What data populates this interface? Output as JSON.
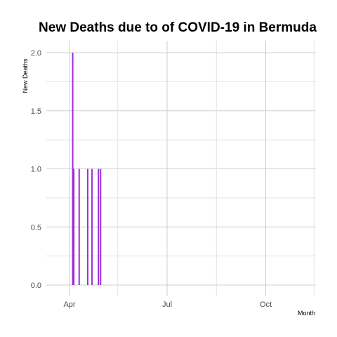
{
  "chart_data": {
    "type": "bar",
    "title": "New Deaths due to of COVID-19 in Bermuda",
    "xlabel": "Month",
    "ylabel": "New Deaths",
    "x_tick_labels": [
      "Apr",
      "Jul",
      "Oct"
    ],
    "y_tick_labels": [
      "0.0",
      "0.5",
      "1.0",
      "1.5",
      "2.0"
    ],
    "ylim": [
      0,
      2
    ],
    "grid": true,
    "bar_color": "#9b30d9",
    "series": [
      {
        "x": [
          "2020-04-04",
          "2020-04-05",
          "2020-04-10",
          "2020-04-18",
          "2020-04-22",
          "2020-04-28",
          "2020-04-30"
        ],
        "values": [
          2,
          1,
          1,
          1,
          1,
          1,
          1
        ]
      }
    ]
  }
}
